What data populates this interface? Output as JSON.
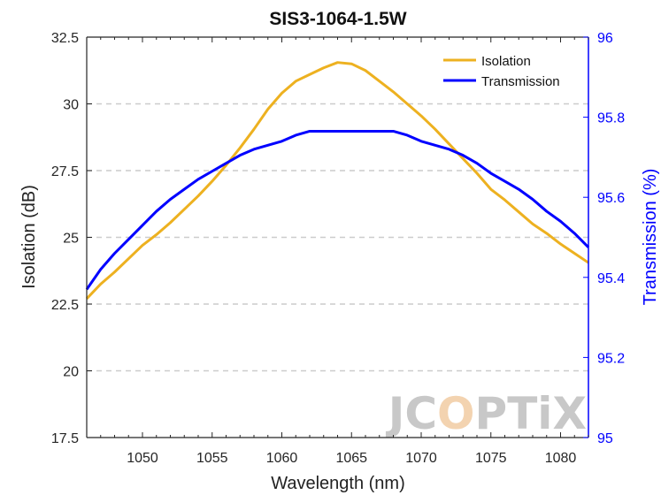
{
  "chart_data": {
    "type": "line",
    "title": "SIS3-1064-1.5W",
    "xlabel": "Wavelength (nm)",
    "ylabel_left": "Isolation (dB)",
    "ylabel_right": "Transmission (%)",
    "xlim": [
      1046,
      1082
    ],
    "ylim_left": [
      17.5,
      32.5
    ],
    "ylim_right": [
      95,
      96
    ],
    "x_ticks": [
      1050,
      1055,
      1060,
      1065,
      1070,
      1075,
      1080
    ],
    "y_left_ticks": [
      17.5,
      20,
      22.5,
      25,
      27.5,
      30,
      32.5
    ],
    "y_right_ticks": [
      95,
      95.2,
      95.4,
      95.6,
      95.8,
      96
    ],
    "grid": "horizontal dashed",
    "legend_position": "top-right",
    "series": [
      {
        "name": "Isolation",
        "axis": "left",
        "color": "#EDB120",
        "x": [
          1046,
          1047,
          1048,
          1049,
          1050,
          1051,
          1052,
          1053,
          1054,
          1055,
          1056,
          1057,
          1058,
          1059,
          1060,
          1061,
          1062,
          1063,
          1064,
          1065,
          1066,
          1067,
          1068,
          1069,
          1070,
          1071,
          1072,
          1073,
          1074,
          1075,
          1076,
          1077,
          1078,
          1079,
          1080,
          1081,
          1082
        ],
        "values": [
          22.7,
          23.25,
          23.7,
          24.2,
          24.7,
          25.1,
          25.55,
          26.05,
          26.55,
          27.1,
          27.7,
          28.35,
          29.05,
          29.8,
          30.4,
          30.85,
          31.1,
          31.35,
          31.55,
          31.5,
          31.25,
          30.85,
          30.45,
          30.0,
          29.55,
          29.05,
          28.5,
          27.95,
          27.4,
          26.8,
          26.4,
          25.95,
          25.5,
          25.15,
          24.75,
          24.4,
          24.05
        ]
      },
      {
        "name": "Transmission",
        "axis": "right",
        "color": "#0000FF",
        "x": [
          1046,
          1047,
          1048,
          1049,
          1050,
          1051,
          1052,
          1053,
          1054,
          1055,
          1056,
          1057,
          1058,
          1059,
          1060,
          1061,
          1062,
          1063,
          1064,
          1065,
          1066,
          1067,
          1068,
          1069,
          1070,
          1071,
          1072,
          1073,
          1074,
          1075,
          1076,
          1077,
          1078,
          1079,
          1080,
          1081,
          1082
        ],
        "values": [
          95.37,
          95.42,
          95.46,
          95.495,
          95.53,
          95.565,
          95.595,
          95.62,
          95.645,
          95.665,
          95.685,
          95.705,
          95.72,
          95.73,
          95.74,
          95.755,
          95.765,
          95.765,
          95.765,
          95.765,
          95.765,
          95.765,
          95.765,
          95.755,
          95.74,
          95.73,
          95.72,
          95.705,
          95.685,
          95.66,
          95.64,
          95.62,
          95.595,
          95.565,
          95.54,
          95.51,
          95.475
        ]
      }
    ]
  },
  "watermark": {
    "text_before": "JC",
    "text_highlight": "O",
    "text_after": "PTiX"
  },
  "colors": {
    "isolation": "#EDB120",
    "transmission": "#0000FF",
    "watermark_gray": "#C8C8C8",
    "watermark_orange": "#F3D3B0",
    "grid": "#CCCCCC"
  }
}
